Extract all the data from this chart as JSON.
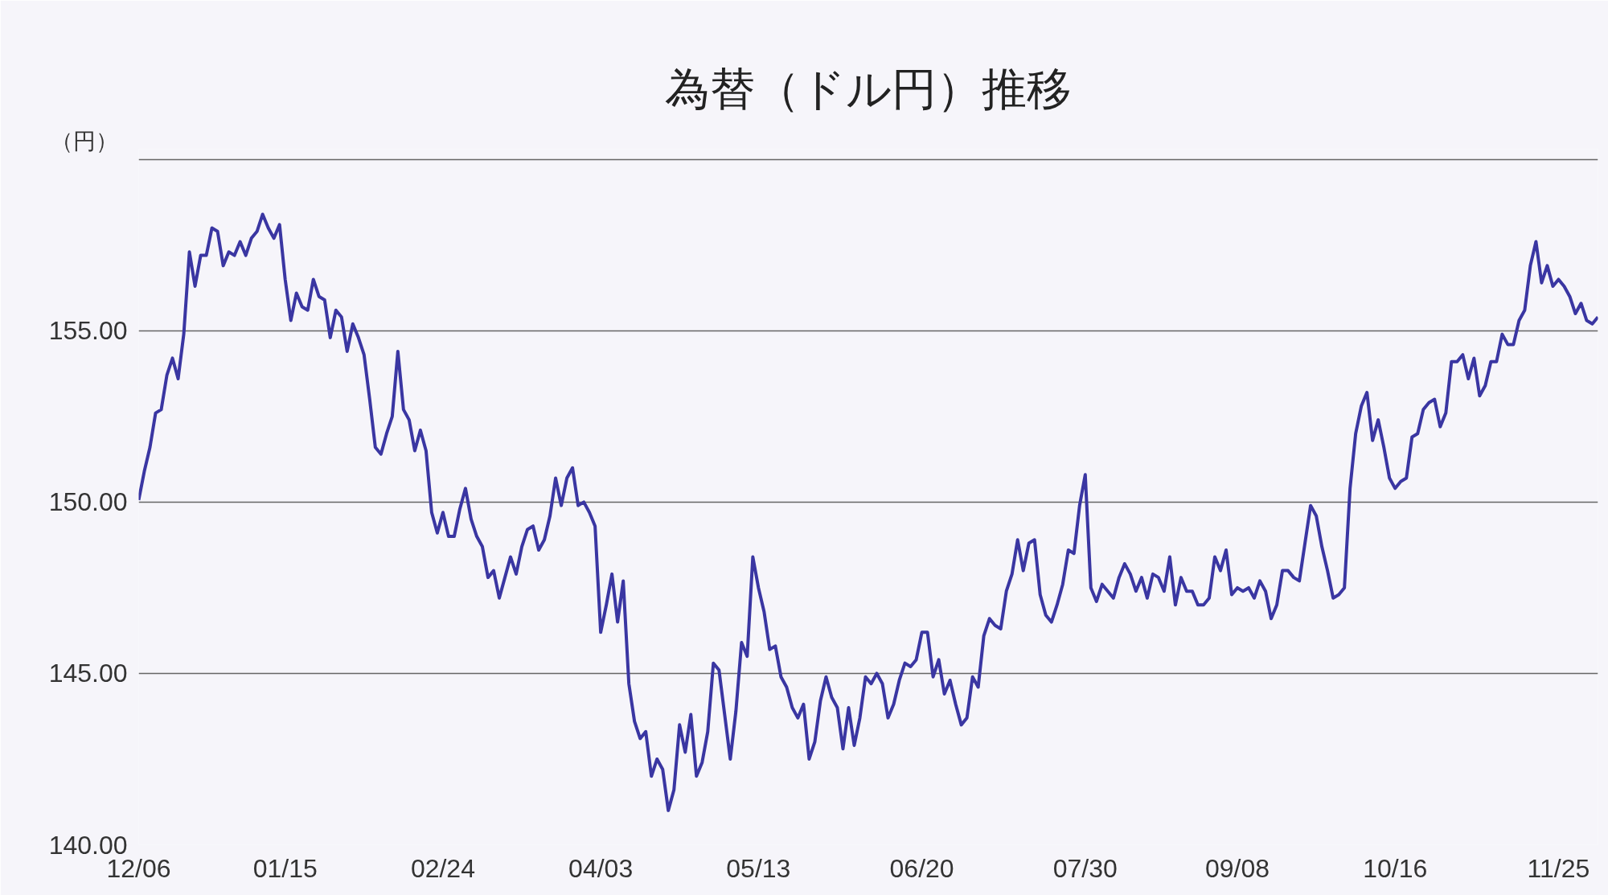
{
  "chart_data": {
    "type": "line",
    "title": "為替（ドル円）推移",
    "ylabel": "（円）",
    "categories": [
      "12/06",
      null,
      null,
      null,
      null,
      null,
      null,
      null,
      null,
      null,
      null,
      null,
      null,
      null,
      null,
      null,
      null,
      null,
      null,
      null,
      null,
      null,
      null,
      null,
      null,
      null,
      "01/15",
      null,
      null,
      null,
      null,
      null,
      null,
      null,
      null,
      null,
      null,
      null,
      null,
      null,
      null,
      null,
      null,
      null,
      null,
      null,
      null,
      null,
      null,
      null,
      null,
      null,
      null,
      null,
      "02/24",
      null,
      null,
      null,
      null,
      null,
      null,
      null,
      null,
      null,
      null,
      null,
      null,
      null,
      null,
      null,
      null,
      null,
      null,
      null,
      null,
      null,
      null,
      null,
      null,
      null,
      null,
      null,
      "04/03",
      null,
      null,
      null,
      null,
      null,
      null,
      null,
      null,
      null,
      null,
      null,
      null,
      null,
      null,
      null,
      null,
      null,
      null,
      null,
      null,
      null,
      null,
      null,
      null,
      null,
      null,
      null,
      "05/13",
      null,
      null,
      null,
      null,
      null,
      null,
      null,
      null,
      null,
      null,
      null,
      null,
      null,
      null,
      null,
      null,
      null,
      null,
      null,
      null,
      null,
      null,
      null,
      null,
      null,
      null,
      null,
      null,
      "06/20",
      null,
      null,
      null,
      null,
      null,
      null,
      null,
      null,
      null,
      null,
      null,
      null,
      null,
      null,
      null,
      null,
      null,
      null,
      null,
      null,
      null,
      null,
      null,
      null,
      null,
      null,
      null,
      null,
      "07/30",
      null,
      null,
      null,
      null,
      null,
      null,
      null,
      null,
      null,
      null,
      null,
      null,
      null,
      null,
      null,
      null,
      null,
      null,
      null,
      null,
      null,
      null,
      null,
      null,
      null,
      null,
      "09/08",
      null,
      null,
      null,
      null,
      null,
      null,
      null,
      null,
      null,
      null,
      null,
      null,
      null,
      null,
      null,
      null,
      null,
      null,
      null,
      null,
      null,
      null,
      null,
      null,
      null,
      null,
      null,
      "10/16",
      null,
      null,
      null,
      null,
      null,
      null,
      null,
      null,
      null,
      null,
      null,
      null,
      null,
      null,
      null,
      null,
      null,
      null,
      null,
      null,
      null,
      null,
      null,
      null,
      null,
      null,
      null,
      null,
      "11/25",
      null,
      null,
      null,
      null,
      null,
      null,
      null
    ],
    "series": [
      {
        "color": "#3a36a2",
        "values": [
          150.06,
          150.9,
          151.6,
          152.6,
          152.7,
          153.7,
          154.2,
          153.6,
          154.9,
          157.3,
          156.3,
          157.2,
          157.2,
          158.0,
          157.9,
          156.9,
          157.3,
          157.2,
          157.6,
          157.2,
          157.7,
          157.9,
          158.4,
          158.0,
          157.7,
          158.1,
          156.5,
          155.3,
          156.1,
          155.7,
          155.6,
          156.5,
          156.0,
          155.9,
          154.8,
          155.6,
          155.4,
          154.4,
          155.2,
          154.8,
          154.3,
          153.0,
          151.6,
          151.4,
          152.0,
          152.5,
          154.4,
          152.7,
          152.4,
          151.5,
          152.1,
          151.5,
          149.7,
          149.1,
          149.7,
          149.0,
          149.0,
          149.8,
          150.4,
          149.5,
          149.0,
          148.7,
          147.8,
          148.0,
          147.2,
          147.8,
          148.4,
          147.9,
          148.7,
          149.2,
          149.3,
          148.6,
          148.9,
          149.6,
          150.7,
          149.9,
          150.7,
          151.0,
          149.9,
          150.0,
          149.7,
          149.3,
          146.2,
          147.0,
          147.9,
          146.5,
          147.7,
          144.7,
          143.6,
          143.1,
          143.3,
          142.0,
          142.5,
          142.2,
          141.0,
          141.6,
          143.5,
          142.7,
          143.8,
          142.0,
          142.4,
          143.3,
          145.3,
          145.1,
          143.8,
          142.5,
          143.9,
          145.9,
          145.5,
          148.4,
          147.5,
          146.8,
          145.7,
          145.8,
          144.9,
          144.6,
          144.0,
          143.7,
          144.1,
          142.5,
          143.0,
          144.2,
          144.9,
          144.3,
          144.0,
          142.8,
          144.0,
          142.9,
          143.7,
          144.9,
          144.7,
          145.0,
          144.7,
          143.7,
          144.1,
          144.8,
          145.3,
          145.2,
          145.4,
          146.2,
          146.2,
          144.9,
          145.4,
          144.4,
          144.8,
          144.1,
          143.5,
          143.7,
          144.9,
          144.6,
          146.1,
          146.6,
          146.4,
          146.3,
          147.4,
          147.9,
          148.9,
          148.0,
          148.8,
          148.9,
          147.3,
          146.7,
          146.5,
          147.0,
          147.6,
          148.6,
          148.5,
          149.9,
          150.8,
          147.5,
          147.1,
          147.6,
          147.4,
          147.2,
          147.8,
          148.2,
          147.9,
          147.4,
          147.8,
          147.2,
          147.9,
          147.8,
          147.4,
          148.4,
          147.0,
          147.8,
          147.4,
          147.4,
          147.0,
          147.0,
          147.2,
          148.4,
          148.0,
          148.6,
          147.3,
          147.5,
          147.4,
          147.5,
          147.2,
          147.7,
          147.4,
          146.6,
          147.0,
          148.0,
          148.0,
          147.8,
          147.7,
          148.8,
          149.9,
          149.6,
          148.7,
          148.0,
          147.2,
          147.3,
          147.5,
          150.4,
          152.0,
          152.8,
          153.2,
          151.8,
          152.4,
          151.6,
          150.7,
          150.4,
          150.6,
          150.7,
          151.9,
          152.0,
          152.7,
          152.9,
          153.0,
          152.2,
          152.6,
          154.1,
          154.1,
          154.3,
          153.6,
          154.2,
          153.1,
          153.4,
          154.1,
          154.1,
          154.9,
          154.6,
          154.6,
          155.3,
          155.6,
          156.9,
          157.6,
          156.4,
          156.9,
          156.3,
          156.5,
          156.3,
          156.0,
          155.5,
          155.8,
          155.3,
          155.2,
          155.4
        ]
      }
    ],
    "ylim": [
      140,
      160.3
    ],
    "yticks": [
      {
        "value": 140,
        "label": "140.00"
      },
      {
        "value": 145,
        "label": "145.00"
      },
      {
        "value": 150,
        "label": "150.00"
      },
      {
        "value": 155,
        "label": "155.00"
      },
      {
        "value": 160,
        "label": null
      }
    ],
    "grid": "y",
    "line_style": "solid",
    "marker": "none"
  }
}
